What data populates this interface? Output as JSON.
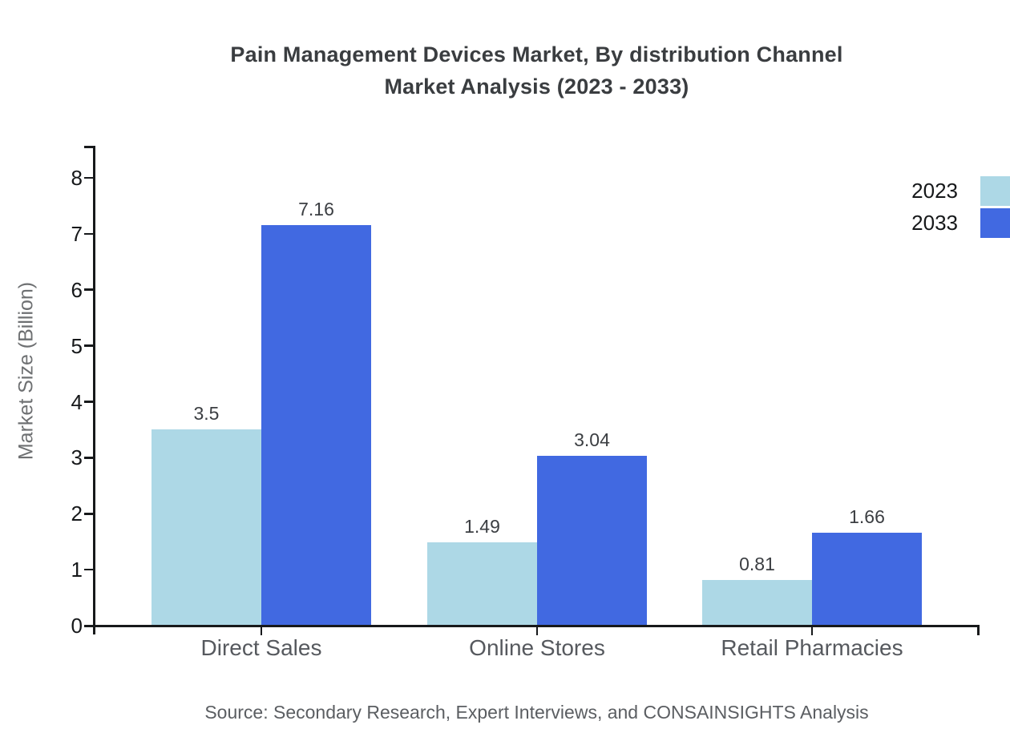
{
  "title": {
    "line1": "Pain Management Devices Market, By distribution Channel",
    "line2": "Market Analysis (2023 - 2033)"
  },
  "source": "Source: Secondary Research, Expert Interviews, and CONSAINSIGHTS Analysis",
  "chart_data": {
    "type": "bar",
    "title": "Pain Management Devices Market, By distribution Channel Market Analysis (2023 - 2033)",
    "categories": [
      "Direct Sales",
      "Online Stores",
      "Retail Pharmacies"
    ],
    "series": [
      {
        "name": "2023",
        "color": "#ADD8E6",
        "values": [
          3.5,
          1.49,
          0.81
        ]
      },
      {
        "name": "2033",
        "color": "#4169E1",
        "values": [
          7.16,
          3.04,
          1.66
        ]
      }
    ],
    "xlabel": "",
    "ylabel": "Market Size (Billion)",
    "ylim": [
      0,
      8
    ],
    "yticks": [
      0,
      1,
      2,
      3,
      4,
      5,
      6,
      7,
      8
    ],
    "grid": false,
    "legend_position": "top-right",
    "value_labels": true
  }
}
